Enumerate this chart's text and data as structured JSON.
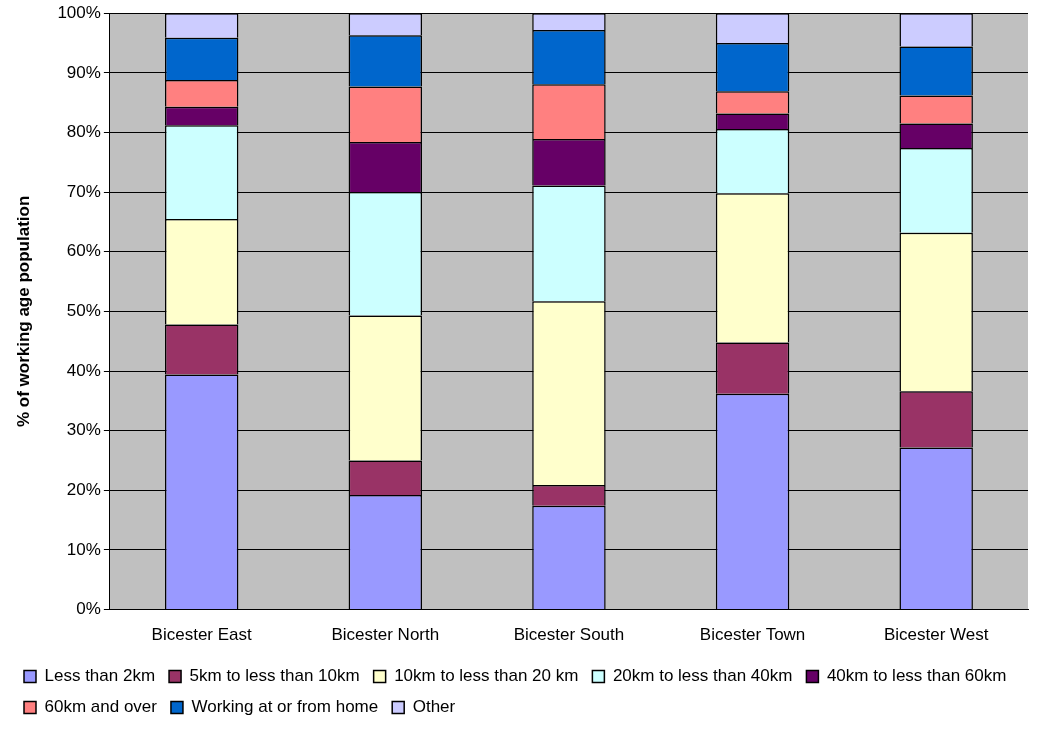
{
  "chart_data": {
    "type": "bar",
    "stacked": true,
    "ylabel": "% of working age population",
    "categories": [
      "Bicester East",
      "Bicester North",
      "Bicester South",
      "Bicester Town",
      "Bicester West"
    ],
    "series": [
      {
        "name": "Less than 2km",
        "color": "#9999ff",
        "values": [
          39.4,
          19.2,
          17.4,
          36.2,
          27.2
        ]
      },
      {
        "name": "5km to less than 10km",
        "color": "#993366",
        "values": [
          8.4,
          5.8,
          3.5,
          8.6,
          9.4
        ]
      },
      {
        "name": "10km to less than 20 km",
        "color": "#ffffcc",
        "values": [
          17.7,
          24.3,
          30.8,
          25.0,
          26.6
        ]
      },
      {
        "name": "20km to less than 40km",
        "color": "#ccffff",
        "values": [
          15.7,
          20.7,
          19.4,
          10.8,
          14.2
        ]
      },
      {
        "name": "40km to less than 60km",
        "color": "#660066",
        "values": [
          3.1,
          8.4,
          7.8,
          2.6,
          4.1
        ]
      },
      {
        "name": "60km and over",
        "color": "#ff8080",
        "values": [
          4.5,
          9.3,
          9.2,
          3.7,
          4.7
        ]
      },
      {
        "name": "Working at or from home",
        "color": "#0066cc",
        "values": [
          7.1,
          8.6,
          9.1,
          8.1,
          8.2
        ]
      },
      {
        "name": "Other",
        "color": "#ccccff",
        "values": [
          4.1,
          3.7,
          2.8,
          5.0,
          5.6
        ]
      }
    ],
    "ylim": [
      0,
      100
    ],
    "yticks": [
      {
        "value": 0,
        "label": "0%"
      },
      {
        "value": 10,
        "label": "10%"
      },
      {
        "value": 20,
        "label": "20%"
      },
      {
        "value": 30,
        "label": "30%"
      },
      {
        "value": 40,
        "label": "40%"
      },
      {
        "value": 50,
        "label": "50%"
      },
      {
        "value": 60,
        "label": "60%"
      },
      {
        "value": 70,
        "label": "70%"
      },
      {
        "value": 80,
        "label": "80%"
      },
      {
        "value": 90,
        "label": "90%"
      },
      {
        "value": 100,
        "label": "100%"
      }
    ],
    "grid": "y",
    "legend": "bottom"
  }
}
